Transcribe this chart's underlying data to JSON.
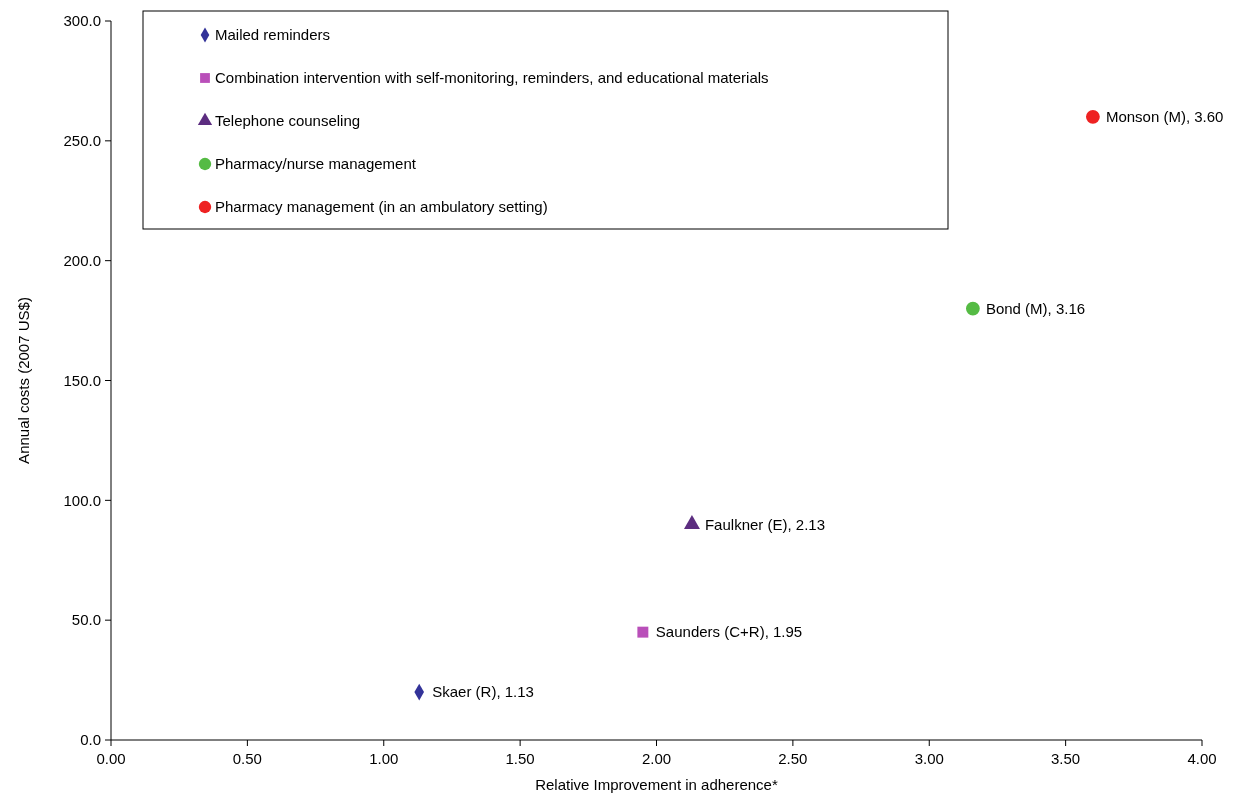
{
  "chart_data": {
    "type": "scatter",
    "xlabel": "Relative Improvement in adherence*",
    "ylabel": "Annual costs (2007 US$)",
    "xlim": [
      0,
      4
    ],
    "ylim": [
      0,
      300
    ],
    "xticks": [
      {
        "value": 0,
        "label": "0.00"
      },
      {
        "value": 0.5,
        "label": "0.50"
      },
      {
        "value": 1,
        "label": "1.00"
      },
      {
        "value": 1.5,
        "label": "1.50"
      },
      {
        "value": 2,
        "label": "2.00"
      },
      {
        "value": 2.5,
        "label": "2.50"
      },
      {
        "value": 3,
        "label": "3.00"
      },
      {
        "value": 3.5,
        "label": "3.50"
      },
      {
        "value": 4,
        "label": "4.00"
      }
    ],
    "yticks": [
      {
        "value": 0,
        "label": "0.0"
      },
      {
        "value": 50,
        "label": "50.0"
      },
      {
        "value": 100,
        "label": "100.0"
      },
      {
        "value": 150,
        "label": "150.0"
      },
      {
        "value": 200,
        "label": "200.0"
      },
      {
        "value": 250,
        "label": "250.0"
      },
      {
        "value": 300,
        "label": "300.0"
      }
    ],
    "grid": false,
    "legend": "top left",
    "series": [
      {
        "name": "Mailed reminders",
        "color": "#333399",
        "marker": "diamond",
        "x": [
          1.13
        ],
        "values": [
          20
        ]
      },
      {
        "name": "Combination intervention with self-monitoring, reminders, and educational materials",
        "color": "#b94fb9",
        "marker": "square",
        "x": [
          1.95
        ],
        "values": [
          45
        ]
      },
      {
        "name": "Telephone counseling",
        "color": "#5c2d80",
        "marker": "triangle",
        "x": [
          2.13
        ],
        "values": [
          90
        ]
      },
      {
        "name": "Pharmacy/nurse management",
        "color": "#55bb44",
        "marker": "circle",
        "x": [
          3.16
        ],
        "values": [
          180
        ]
      },
      {
        "name": "Pharmacy management (in an ambulatory setting)",
        "color": "#ee2222",
        "marker": "circle",
        "x": [
          3.6
        ],
        "values": [
          260
        ]
      }
    ],
    "annotations": [
      {
        "text": "Skaer (R), 1.13",
        "x": 1.13,
        "y": 20
      },
      {
        "text": "Saunders (C+R), 1.95",
        "x": 1.95,
        "y": 45
      },
      {
        "text": "Faulkner (E), 2.13",
        "x": 2.13,
        "y": 90
      },
      {
        "text": "Bond (M), 3.16",
        "x": 3.16,
        "y": 180
      },
      {
        "text": "Monson (M), 3.60",
        "x": 3.6,
        "y": 260
      }
    ]
  }
}
